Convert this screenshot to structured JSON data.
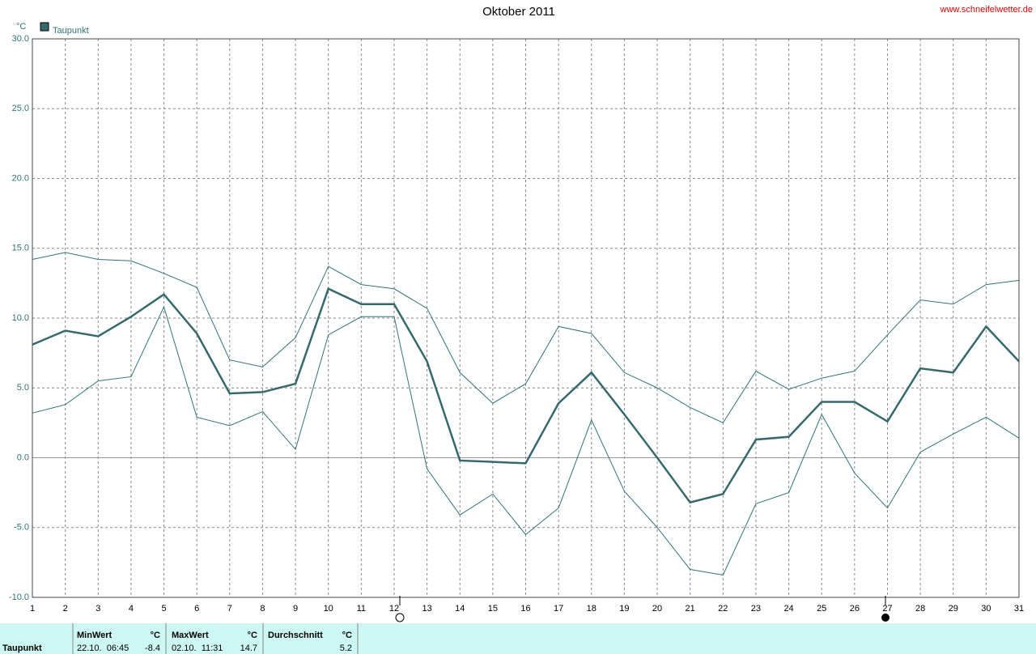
{
  "chart_data": {
    "type": "line",
    "title": "Oktober 2011",
    "watermark": "www.schneifelwetter.de",
    "y_unit": "°C",
    "x": [
      1,
      2,
      3,
      4,
      5,
      6,
      7,
      8,
      9,
      10,
      11,
      12,
      13,
      14,
      15,
      16,
      17,
      18,
      19,
      20,
      21,
      22,
      23,
      24,
      25,
      26,
      27,
      28,
      29,
      30,
      31
    ],
    "xlim": [
      1,
      31
    ],
    "xticks": [
      1,
      2,
      3,
      4,
      5,
      6,
      7,
      8,
      9,
      10,
      11,
      12,
      13,
      14,
      15,
      16,
      17,
      18,
      19,
      20,
      21,
      22,
      23,
      24,
      25,
      26,
      27,
      28,
      29,
      30,
      31
    ],
    "ylim": [
      -10,
      30
    ],
    "yticks": [
      {
        "value": -10,
        "label": "-10.0"
      },
      {
        "value": -5,
        "label": "-5.0"
      },
      {
        "value": 0,
        "label": "0.0"
      },
      {
        "value": 5,
        "label": "5.0"
      },
      {
        "value": 10,
        "label": "10.0"
      },
      {
        "value": 15,
        "label": "15.0"
      },
      {
        "value": 20,
        "label": "20.0"
      },
      {
        "value": 25,
        "label": "25.0"
      },
      {
        "value": 30,
        "label": "30.0"
      }
    ],
    "grid": true,
    "series": [
      {
        "name": "Taupunkt",
        "color": "#36696d",
        "values": [
          8.1,
          9.1,
          8.7,
          10.1,
          11.7,
          8.9,
          4.6,
          4.7,
          5.3,
          12.1,
          11.0,
          11.0,
          6.9,
          -0.2,
          -0.3,
          -0.4,
          3.9,
          6.1,
          3.1,
          0.0,
          -3.2,
          -2.6,
          1.3,
          1.5,
          4.0,
          4.0,
          2.6,
          6.4,
          6.1,
          9.4,
          6.9
        ]
      },
      {
        "color": "#2f7474",
        "values": [
          14.2,
          14.7,
          14.2,
          14.1,
          13.2,
          12.2,
          7.0,
          6.5,
          8.6,
          13.7,
          12.4,
          12.1,
          10.7,
          6.1,
          3.9,
          5.3,
          9.4,
          8.9,
          6.1,
          5.0,
          3.6,
          2.5,
          6.2,
          4.9,
          5.7,
          6.2,
          8.8,
          11.3,
          11.0,
          12.4,
          12.7
        ]
      },
      {
        "color": "#2f7474",
        "values": [
          3.2,
          3.8,
          5.5,
          5.8,
          10.8,
          2.9,
          2.3,
          3.3,
          0.6,
          8.8,
          10.1,
          10.1,
          -0.8,
          -4.1,
          -2.6,
          -5.5,
          -3.6,
          2.7,
          -2.4,
          -5.0,
          -8.0,
          -8.4,
          -3.3,
          -2.5,
          3.1,
          -1.1,
          -3.6,
          0.4,
          1.7,
          2.9,
          1.4
        ]
      }
    ]
  },
  "summary": {
    "row_label": "Taupunkt",
    "columns": [
      {
        "header": "MinWert",
        "unit": "°C",
        "time": "22.10.  06:45",
        "value": -8.4
      },
      {
        "header": "MaxWert",
        "unit": "°C",
        "time": "02.10.  11:31",
        "value": 14.7
      },
      {
        "header": "Durchschnitt",
        "unit": "°C",
        "value": 5.2
      }
    ]
  }
}
